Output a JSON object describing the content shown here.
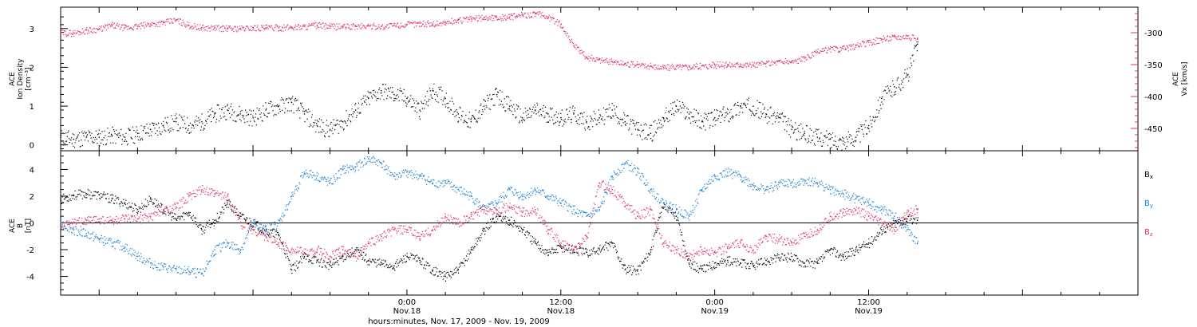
{
  "figure": {
    "xlabel": "hours:minutes, Nov. 17, 2009 - Nov. 19, 2009"
  },
  "colors": {
    "black": "#000000",
    "pink": "#e03060",
    "blue": "#1a7fd6"
  },
  "chart_data": [
    {
      "type": "scatter",
      "ylabel_left": [
        "ACE",
        "Ion Density",
        "[cm⁻³]"
      ],
      "ylabel_right": [
        "ACE",
        "V",
        "x",
        "[km/s]"
      ],
      "y_left_range": [
        -0.15,
        3.55
      ],
      "y_left_ticks": [
        0,
        1,
        2,
        3
      ],
      "y_right_range": [
        -485,
        -260
      ],
      "y_right_ticks": [
        -300,
        -350,
        -400,
        -450
      ],
      "x_range_hours": [
        -27,
        57
      ],
      "x_ticks": [
        {
          "t": 0,
          "label": [
            "0:00",
            "Nov.18"
          ]
        },
        {
          "t": 12,
          "label": [
            "12:00",
            "Nov.18"
          ]
        },
        {
          "t": 24,
          "label": [
            "0:00",
            "Nov.19"
          ]
        },
        {
          "t": 36,
          "label": [
            "12:00",
            "Nov.19"
          ]
        }
      ],
      "series": [
        {
          "axis": "left",
          "color": "black",
          "t": [
            -27.0,
            -26.0,
            -25.0,
            -24.0,
            -23.0,
            -22.0,
            -21.0,
            -20.0,
            -19.0,
            -18.0,
            -17.0,
            -16.0,
            -15.0,
            -14.0,
            -13.0,
            -12.0,
            -11.0,
            -10.0,
            -9.0,
            -8.0,
            -7.0,
            -6.0,
            -5.0,
            -4.0,
            -3.0,
            -2.0,
            -1.0,
            0.0,
            1.0,
            2.0,
            3.0,
            4.0,
            5.0,
            6.0,
            7.0,
            8.0,
            9.0,
            10.0,
            11.0,
            12.0,
            13.0,
            14.0,
            15.0,
            16.0,
            17.0,
            18.0,
            19.0,
            20.0,
            21.0,
            22.0,
            23.0,
            24.0,
            25.0,
            26.0,
            27.0,
            28.0,
            29.0,
            30.0,
            31.0,
            32.0,
            33.0,
            34.0,
            35.0,
            36.0,
            37.0,
            38.0,
            39.0,
            39.8
          ],
          "v": [
            0.2,
            0.15,
            0.2,
            0.2,
            0.25,
            0.2,
            0.3,
            0.4,
            0.5,
            0.6,
            0.5,
            0.6,
            0.8,
            0.9,
            0.8,
            0.7,
            0.9,
            1.0,
            1.1,
            0.8,
            0.5,
            0.4,
            0.6,
            0.9,
            1.2,
            1.4,
            1.3,
            1.2,
            0.9,
            1.4,
            1.2,
            0.8,
            0.6,
            1.0,
            1.3,
            1.0,
            0.7,
            0.9,
            0.8,
            0.7,
            0.8,
            0.6,
            0.7,
            0.9,
            0.6,
            0.4,
            0.3,
            0.7,
            1.0,
            0.8,
            0.6,
            0.7,
            0.8,
            1.0,
            1.0,
            0.8,
            0.7,
            0.4,
            0.3,
            0.2,
            0.15,
            0.1,
            0.2,
            0.5,
            1.2,
            1.5,
            1.8,
            2.6
          ]
        },
        {
          "axis": "right",
          "color": "pink",
          "t": [
            -27.0,
            -26.0,
            -25.0,
            -24.0,
            -23.0,
            -22.0,
            -21.0,
            -20.0,
            -19.0,
            -18.0,
            -17.0,
            -16.0,
            -15.0,
            -14.0,
            -13.0,
            -12.0,
            -11.0,
            -10.0,
            -9.0,
            -8.0,
            -7.0,
            -6.0,
            -5.0,
            -4.0,
            -3.0,
            -2.0,
            -1.0,
            0.0,
            1.0,
            2.0,
            3.0,
            4.0,
            5.0,
            6.0,
            7.0,
            8.0,
            9.0,
            10.0,
            11.0,
            12.0,
            13.0,
            14.0,
            15.0,
            16.0,
            17.0,
            18.0,
            19.0,
            20.0,
            21.0,
            22.0,
            23.0,
            24.0,
            25.0,
            26.0,
            27.0,
            28.0,
            29.0,
            30.0,
            31.0,
            32.0,
            33.0,
            34.0,
            35.0,
            36.0,
            37.0,
            38.0,
            39.0,
            39.8
          ],
          "v": [
            -300,
            -300,
            -296,
            -294,
            -288,
            -292,
            -290,
            -286,
            -284,
            -280,
            -288,
            -292,
            -292,
            -293,
            -293,
            -292,
            -292,
            -292,
            -291,
            -290,
            -288,
            -290,
            -290,
            -290,
            -289,
            -290,
            -288,
            -287,
            -285,
            -286,
            -284,
            -280,
            -278,
            -276,
            -276,
            -275,
            -272,
            -270,
            -275,
            -287,
            -320,
            -338,
            -342,
            -345,
            -348,
            -350,
            -352,
            -354,
            -353,
            -353,
            -352,
            -350,
            -350,
            -349,
            -350,
            -348,
            -345,
            -345,
            -340,
            -330,
            -325,
            -325,
            -320,
            -315,
            -310,
            -306,
            -305,
            -310
          ]
        }
      ]
    },
    {
      "type": "scatter",
      "ylabel_left": [
        "ACE",
        "B",
        "[nT]"
      ],
      "y_range": [
        -5.4,
        5.4
      ],
      "y_ticks": [
        -4,
        -2,
        0,
        2,
        4
      ],
      "zero_line": true,
      "x_range_hours": [
        -27,
        57
      ],
      "legend_position": "right",
      "series": [
        {
          "name": "B",
          "sub": "x",
          "color": "black",
          "t": [
            -27.0,
            -26.0,
            -25.0,
            -24.0,
            -23.0,
            -22.0,
            -21.0,
            -20.0,
            -19.0,
            -18.0,
            -17.0,
            -16.0,
            -15.0,
            -14.0,
            -13.0,
            -12.0,
            -11.0,
            -10.0,
            -9.0,
            -8.0,
            -7.0,
            -6.0,
            -5.0,
            -4.0,
            -3.0,
            -2.0,
            -1.0,
            0.0,
            1.0,
            2.0,
            3.0,
            4.0,
            5.0,
            6.0,
            7.0,
            8.0,
            9.0,
            10.0,
            11.0,
            12.0,
            13.0,
            14.0,
            15.0,
            16.0,
            17.0,
            18.0,
            19.0,
            20.0,
            21.0,
            22.0,
            23.0,
            24.0,
            25.0,
            26.0,
            27.0,
            28.0,
            29.0,
            30.0,
            31.0,
            32.0,
            33.0,
            34.0,
            35.0,
            36.0,
            37.0,
            38.0,
            39.0,
            39.8
          ],
          "v": [
            1.8,
            2.1,
            2.2,
            2.1,
            1.8,
            1.5,
            1.0,
            1.8,
            1.0,
            0.3,
            0.8,
            -0.5,
            0.2,
            1.5,
            0.5,
            0.0,
            -0.6,
            -0.9,
            -3.5,
            -2.5,
            -2.8,
            -3.2,
            -2.5,
            -2.0,
            -2.8,
            -3.0,
            -3.2,
            -2.5,
            -2.8,
            -3.5,
            -4.0,
            -3.5,
            -2.0,
            -0.5,
            0.5,
            0.2,
            -0.5,
            -1.5,
            -2.2,
            -1.8,
            -2.0,
            -2.2,
            -2.0,
            -1.5,
            -3.5,
            -3.5,
            -2.0,
            1.5,
            0.5,
            -3.0,
            -3.5,
            -3.0,
            -2.8,
            -3.0,
            -3.2,
            -2.8,
            -2.6,
            -2.5,
            -3.0,
            -3.0,
            -2.0,
            -2.5,
            -2.0,
            -1.5,
            -0.5,
            0.0,
            0.3,
            0.2
          ]
        },
        {
          "name": "B",
          "sub": "y",
          "color": "blue",
          "t": [
            -27.0,
            -26.0,
            -25.0,
            -24.0,
            -23.0,
            -22.0,
            -21.0,
            -20.0,
            -19.0,
            -18.0,
            -17.0,
            -16.0,
            -15.0,
            -14.0,
            -13.0,
            -12.0,
            -11.0,
            -10.0,
            -9.0,
            -8.0,
            -7.0,
            -6.0,
            -5.0,
            -4.0,
            -3.0,
            -2.0,
            -1.0,
            0.0,
            1.0,
            2.0,
            3.0,
            4.0,
            5.0,
            6.0,
            7.0,
            8.0,
            9.0,
            10.0,
            11.0,
            12.0,
            13.0,
            14.0,
            15.0,
            16.0,
            17.0,
            18.0,
            19.0,
            20.0,
            21.0,
            22.0,
            23.0,
            24.0,
            25.0,
            26.0,
            27.0,
            28.0,
            29.0,
            30.0,
            31.0,
            32.0,
            33.0,
            34.0,
            35.0,
            36.0,
            37.0,
            38.0,
            39.0,
            39.8
          ],
          "v": [
            0.0,
            -0.5,
            -0.8,
            -1.2,
            -1.5,
            -1.8,
            -2.5,
            -3.0,
            -3.3,
            -3.5,
            -3.6,
            -3.8,
            -2.0,
            -1.5,
            -2.0,
            0.0,
            -0.5,
            0.0,
            2.0,
            3.8,
            3.5,
            3.0,
            4.0,
            4.2,
            4.8,
            4.5,
            3.5,
            3.8,
            3.5,
            3.0,
            3.0,
            2.5,
            2.0,
            1.0,
            1.5,
            2.5,
            2.0,
            2.5,
            2.0,
            1.5,
            1.0,
            0.5,
            1.0,
            3.5,
            4.5,
            3.8,
            2.5,
            1.5,
            1.0,
            0.5,
            2.5,
            3.5,
            3.8,
            3.5,
            2.8,
            2.5,
            3.0,
            3.0,
            3.2,
            3.0,
            2.5,
            2.2,
            1.8,
            1.5,
            1.0,
            0.5,
            -0.5,
            -1.5
          ]
        },
        {
          "name": "B",
          "sub": "z",
          "color": "pink",
          "t": [
            -27.0,
            -26.0,
            -25.0,
            -24.0,
            -23.0,
            -22.0,
            -21.0,
            -20.0,
            -19.0,
            -18.0,
            -17.0,
            -16.0,
            -15.0,
            -14.0,
            -13.0,
            -12.0,
            -11.0,
            -10.0,
            -9.0,
            -8.0,
            -7.0,
            -6.0,
            -5.0,
            -4.0,
            -3.0,
            -2.0,
            -1.0,
            0.0,
            1.0,
            2.0,
            3.0,
            4.0,
            5.0,
            6.0,
            7.0,
            8.0,
            9.0,
            10.0,
            11.0,
            12.0,
            13.0,
            14.0,
            15.0,
            16.0,
            17.0,
            18.0,
            19.0,
            20.0,
            21.0,
            22.0,
            23.0,
            24.0,
            25.0,
            26.0,
            27.0,
            28.0,
            29.0,
            30.0,
            31.0,
            32.0,
            33.0,
            34.0,
            35.0,
            36.0,
            37.0,
            38.0,
            39.0,
            39.8
          ],
          "v": [
            -0.3,
            0.0,
            0.2,
            0.3,
            0.2,
            0.3,
            0.3,
            0.5,
            1.0,
            1.2,
            2.0,
            2.5,
            2.2,
            2.0,
            0.0,
            -0.5,
            -1.0,
            -1.5,
            -2.0,
            -2.2,
            -2.0,
            -2.5,
            -2.0,
            -2.5,
            -1.5,
            -1.0,
            -0.5,
            -0.5,
            -1.0,
            -0.5,
            0.5,
            0.0,
            0.5,
            1.0,
            1.0,
            1.2,
            0.8,
            1.0,
            -0.5,
            -1.5,
            -2.0,
            -1.0,
            3.0,
            2.5,
            1.5,
            0.5,
            1.0,
            -1.5,
            -2.0,
            -2.5,
            -2.0,
            -2.2,
            -1.8,
            -1.5,
            -2.0,
            -1.0,
            -1.2,
            -1.5,
            -1.0,
            -0.5,
            0.5,
            0.8,
            1.0,
            0.5,
            0.0,
            -0.5,
            0.8,
            1.0
          ]
        }
      ]
    }
  ]
}
